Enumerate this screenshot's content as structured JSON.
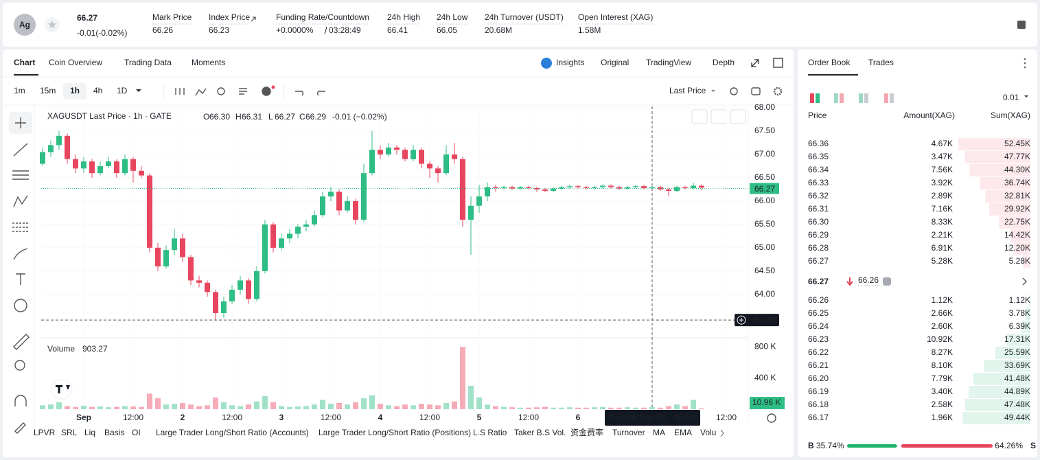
{
  "header": {
    "symbol_icon": "Ag",
    "price": "66.27",
    "change": "-0.01(-0.02%)",
    "stats": [
      {
        "label": "Mark Price",
        "value": "66.26"
      },
      {
        "label": "Index Price",
        "value": "66.23"
      },
      {
        "label": "Funding Rate/Countdown",
        "value": "+0.0000%",
        "value2": "03:28:49"
      },
      {
        "label": "24h High",
        "value": "66.41"
      },
      {
        "label": "24h Low",
        "value": "66.05"
      },
      {
        "label": "24h Turnover (USDT)",
        "value": "20.68M"
      },
      {
        "label": "Open Interest (XAG)",
        "value": "1.58M"
      }
    ]
  },
  "chart_tabs": [
    "Chart",
    "Coin Overview",
    "Trading Data",
    "Moments"
  ],
  "view_tabs": [
    "Insights",
    "Original",
    "TradingView",
    "Depth"
  ],
  "intervals": [
    "1m",
    "15m",
    "1h",
    "4h",
    "1D"
  ],
  "price_source": "Last Price",
  "indicators": [
    "LPVR",
    "SRL",
    "Liq",
    "Basis",
    "OI",
    "Large Trader Long/Short Ratio (Accounts)",
    "Large Trader Long/Short Ratio (Positions)",
    "L.S Ratio",
    "Taker B.S Vol.",
    "资金费率",
    "Turnover",
    "MA",
    "EMA",
    "Volu"
  ],
  "chart_data": {
    "type": "candlestick",
    "title": "XAGUSDT Last Price · 1h · GATE",
    "legend": [
      {
        "label": "O",
        "value": "66.30"
      },
      {
        "label": "H",
        "value": "66.31"
      },
      {
        "label": "L",
        "value": "66.27"
      },
      {
        "label": "C",
        "value": "66.29"
      }
    ],
    "legend_change": "-0.01 (−0.02%)",
    "up_color": "#2ebd85",
    "down_color": "#e8465f",
    "xlim": [
      -0.33,
      171.33
    ],
    "ylim": [
      63.07,
      68.03
    ],
    "yticks": [
      {
        "value": 68,
        "label": "68.00"
      },
      {
        "value": 67.5,
        "label": "67.50"
      },
      {
        "value": 67,
        "label": "67.00"
      },
      {
        "value": 66.5,
        "label": "66.50"
      },
      {
        "value": 66,
        "label": "66.00"
      },
      {
        "value": 65.5,
        "label": "65.50"
      },
      {
        "value": 65,
        "label": "65.00"
      },
      {
        "value": 64.5,
        "label": "64.50"
      },
      {
        "value": 64,
        "label": "64.00"
      }
    ],
    "xticks": [
      {
        "value": 10,
        "label": "Sep"
      },
      {
        "value": 22,
        "label": "12:00"
      },
      {
        "value": 34,
        "label": "2"
      },
      {
        "value": 46,
        "label": "12:00"
      },
      {
        "value": 58,
        "label": "3"
      },
      {
        "value": 70,
        "label": "12:00"
      },
      {
        "value": 82,
        "label": "4"
      },
      {
        "value": 94,
        "label": "12:00"
      },
      {
        "value": 106,
        "label": "5"
      },
      {
        "value": 118,
        "label": "12:00"
      },
      {
        "value": 130,
        "label": "6"
      },
      {
        "value": 166,
        "label": "12:00"
      }
    ],
    "last_price": {
      "value": 66.27,
      "label": "66.27"
    },
    "crosshair": {
      "value": 63.45,
      "label": "63.45",
      "x": 148,
      "date": "Sun 06 Sep '26",
      "time": "18:00"
    },
    "x": [
      0,
      2,
      4,
      6,
      8,
      10,
      12,
      14,
      16,
      18,
      20,
      22,
      24,
      26,
      28,
      30,
      32,
      34,
      36,
      38,
      40,
      42,
      44,
      46,
      48,
      50,
      52,
      54,
      56,
      58,
      60,
      62,
      64,
      66,
      68,
      70,
      72,
      74,
      76,
      78,
      80,
      82,
      84,
      86,
      88,
      90,
      92,
      94,
      96,
      98,
      100,
      102,
      104,
      106,
      108,
      110,
      112,
      114,
      116,
      118,
      120,
      122,
      124,
      126,
      128,
      130,
      132,
      134,
      136,
      138,
      140,
      142,
      144,
      146,
      148,
      150,
      152,
      154,
      156,
      158,
      160
    ],
    "ohlc": [
      [
        66.8,
        67.15,
        66.75,
        67.05
      ],
      [
        67.05,
        67.3,
        66.95,
        67.2
      ],
      [
        67.2,
        67.5,
        67.1,
        67.4
      ],
      [
        67.4,
        67.45,
        66.8,
        66.9
      ],
      [
        66.9,
        67.0,
        66.6,
        66.7
      ],
      [
        66.7,
        66.95,
        66.6,
        66.85
      ],
      [
        66.85,
        66.9,
        66.5,
        66.6
      ],
      [
        66.6,
        66.85,
        66.55,
        66.75
      ],
      [
        66.75,
        66.95,
        66.7,
        66.85
      ],
      [
        66.85,
        66.9,
        66.5,
        66.6
      ],
      [
        66.6,
        67.0,
        66.55,
        66.9
      ],
      [
        66.9,
        66.95,
        66.4,
        66.65
      ],
      [
        66.65,
        66.75,
        66.5,
        66.55
      ],
      [
        66.55,
        66.6,
        64.9,
        65.0
      ],
      [
        65.0,
        65.1,
        64.5,
        64.6
      ],
      [
        64.6,
        65.05,
        64.55,
        64.95
      ],
      [
        64.95,
        65.4,
        64.85,
        65.2
      ],
      [
        65.2,
        65.3,
        64.7,
        64.8
      ],
      [
        64.8,
        64.85,
        64.2,
        64.3
      ],
      [
        64.3,
        64.4,
        64.15,
        64.25
      ],
      [
        64.25,
        64.3,
        63.95,
        64.05
      ],
      [
        64.05,
        64.1,
        63.45,
        63.6
      ],
      [
        63.6,
        63.95,
        63.5,
        63.85
      ],
      [
        63.85,
        64.2,
        63.8,
        64.1
      ],
      [
        64.1,
        64.4,
        64.0,
        64.3
      ],
      [
        64.3,
        64.35,
        63.8,
        63.9
      ],
      [
        63.9,
        64.6,
        63.85,
        64.5
      ],
      [
        64.5,
        65.6,
        64.45,
        65.5
      ],
      [
        65.5,
        65.55,
        64.9,
        65.0
      ],
      [
        65.0,
        65.3,
        64.95,
        65.2
      ],
      [
        65.2,
        65.4,
        65.1,
        65.3
      ],
      [
        65.3,
        65.5,
        65.2,
        65.45
      ],
      [
        65.45,
        65.6,
        65.35,
        65.5
      ],
      [
        65.5,
        65.8,
        65.45,
        65.7
      ],
      [
        65.7,
        66.2,
        65.65,
        66.1
      ],
      [
        66.1,
        66.3,
        66.0,
        66.2
      ],
      [
        66.2,
        66.25,
        65.7,
        65.8
      ],
      [
        65.8,
        66.1,
        65.75,
        66.0
      ],
      [
        66.0,
        66.05,
        65.5,
        65.6
      ],
      [
        65.6,
        66.8,
        65.55,
        66.6
      ],
      [
        66.6,
        67.5,
        66.55,
        67.1
      ],
      [
        67.1,
        67.2,
        66.9,
        67.0
      ],
      [
        67.0,
        67.25,
        66.95,
        67.15
      ],
      [
        67.15,
        67.2,
        67.0,
        67.1
      ],
      [
        67.1,
        67.15,
        66.85,
        66.9
      ],
      [
        66.9,
        67.2,
        66.85,
        67.1
      ],
      [
        67.1,
        67.15,
        66.7,
        66.8
      ],
      [
        66.8,
        66.85,
        66.5,
        66.7
      ],
      [
        66.7,
        66.75,
        66.4,
        66.6
      ],
      [
        66.6,
        67.2,
        66.55,
        67.0
      ],
      [
        67.0,
        67.25,
        66.8,
        66.9
      ],
      [
        66.9,
        66.95,
        65.45,
        65.6
      ],
      [
        65.6,
        66.1,
        64.85,
        65.9
      ],
      [
        65.9,
        66.35,
        65.75,
        66.1
      ],
      [
        66.1,
        66.4,
        66.0,
        66.3
      ],
      [
        66.3,
        66.35,
        66.2,
        66.28
      ],
      [
        66.28,
        66.33,
        66.25,
        66.3
      ],
      [
        66.3,
        66.33,
        66.24,
        66.27
      ],
      [
        66.27,
        66.33,
        66.24,
        66.3
      ],
      [
        66.3,
        66.33,
        66.25,
        66.28
      ],
      [
        66.28,
        66.31,
        66.2,
        66.25
      ],
      [
        66.25,
        66.28,
        66.19,
        66.22
      ],
      [
        66.22,
        66.3,
        66.19,
        66.27
      ],
      [
        66.27,
        66.33,
        66.24,
        66.3
      ],
      [
        66.3,
        66.36,
        66.27,
        66.32
      ],
      [
        66.32,
        66.35,
        66.27,
        66.3
      ],
      [
        66.3,
        66.33,
        66.25,
        66.28
      ],
      [
        66.28,
        66.33,
        66.25,
        66.3
      ],
      [
        66.3,
        66.36,
        66.27,
        66.33
      ],
      [
        66.33,
        66.36,
        66.27,
        66.3
      ],
      [
        66.3,
        66.33,
        66.24,
        66.27
      ],
      [
        66.27,
        66.33,
        66.24,
        66.3
      ],
      [
        66.3,
        66.35,
        66.27,
        66.32
      ],
      [
        66.32,
        66.35,
        66.25,
        66.28
      ],
      [
        66.28,
        66.33,
        66.25,
        66.3
      ],
      [
        66.3,
        66.33,
        66.22,
        66.25
      ],
      [
        66.25,
        66.28,
        66.1,
        66.22
      ],
      [
        66.22,
        66.33,
        66.19,
        66.3
      ],
      [
        66.3,
        66.33,
        66.25,
        66.28
      ],
      [
        66.28,
        66.4,
        66.25,
        66.33
      ],
      [
        66.33,
        66.36,
        66.24,
        66.29
      ]
    ],
    "volume": {
      "title": "Volume",
      "value_label": "903.27",
      "last_label": "10.96 K",
      "ylim": [
        0,
        890000
      ],
      "yticks": [
        {
          "value": 800000,
          "label": "800 K"
        },
        {
          "value": 400000,
          "label": "400 K"
        }
      ],
      "values": [
        50000,
        60000,
        90000,
        40000,
        30000,
        45000,
        30000,
        35000,
        25000,
        30000,
        40000,
        35000,
        30000,
        200000,
        140000,
        60000,
        70000,
        80000,
        60000,
        40000,
        50000,
        150000,
        90000,
        50000,
        40000,
        60000,
        100000,
        170000,
        90000,
        40000,
        30000,
        35000,
        40000,
        60000,
        120000,
        70000,
        80000,
        60000,
        90000,
        140000,
        180000,
        70000,
        50000,
        40000,
        60000,
        50000,
        70000,
        60000,
        50000,
        80000,
        100000,
        800000,
        300000,
        150000,
        60000,
        40000,
        30000,
        25000,
        20000,
        20000,
        25000,
        30000,
        20000,
        20000,
        25000,
        20000,
        20000,
        25000,
        30000,
        20000,
        20000,
        25000,
        20000,
        20000,
        30000,
        20000,
        40000,
        60000,
        40000,
        120000,
        10960
      ]
    }
  },
  "order_book": {
    "tabs": [
      "Order Book",
      "Trades"
    ],
    "tick_size": "0.01",
    "columns": [
      "Price",
      "Amount(XAG)",
      "Sum(XAG)"
    ],
    "asks": [
      {
        "price": "66.36",
        "amount": "4.67K",
        "sum": "52.45K"
      },
      {
        "price": "66.35",
        "amount": "3.47K",
        "sum": "47.77K"
      },
      {
        "price": "66.34",
        "amount": "7.56K",
        "sum": "44.30K"
      },
      {
        "price": "66.33",
        "amount": "3.92K",
        "sum": "36.74K"
      },
      {
        "price": "66.32",
        "amount": "2.89K",
        "sum": "32.81K"
      },
      {
        "price": "66.31",
        "amount": "7.16K",
        "sum": "29.92K"
      },
      {
        "price": "66.30",
        "amount": "8.33K",
        "sum": "22.75K"
      },
      {
        "price": "66.29",
        "amount": "2.21K",
        "sum": "14.42K"
      },
      {
        "price": "66.28",
        "amount": "6.91K",
        "sum": "12.20K"
      },
      {
        "price": "66.27",
        "amount": "5.28K",
        "sum": "5.28K"
      }
    ],
    "last": "66.27",
    "mark": "66.26",
    "bids": [
      {
        "price": "66.26",
        "amount": "1.12K",
        "sum": "1.12K"
      },
      {
        "price": "66.25",
        "amount": "2.66K",
        "sum": "3.78K"
      },
      {
        "price": "66.24",
        "amount": "2.60K",
        "sum": "6.39K"
      },
      {
        "price": "66.23",
        "amount": "10.92K",
        "sum": "17.31K"
      },
      {
        "price": "66.22",
        "amount": "8.27K",
        "sum": "25.59K"
      },
      {
        "price": "66.21",
        "amount": "8.10K",
        "sum": "33.69K"
      },
      {
        "price": "66.20",
        "amount": "7.79K",
        "sum": "41.48K"
      },
      {
        "price": "66.19",
        "amount": "3.40K",
        "sum": "44.89K"
      },
      {
        "price": "66.18",
        "amount": "2.58K",
        "sum": "47.48K"
      },
      {
        "price": "66.17",
        "amount": "1.96K",
        "sum": "49.44K"
      }
    ],
    "buy_label": "B",
    "buy_ratio": "35.74%",
    "sell_ratio": "64.26%",
    "sell_label": "S"
  }
}
